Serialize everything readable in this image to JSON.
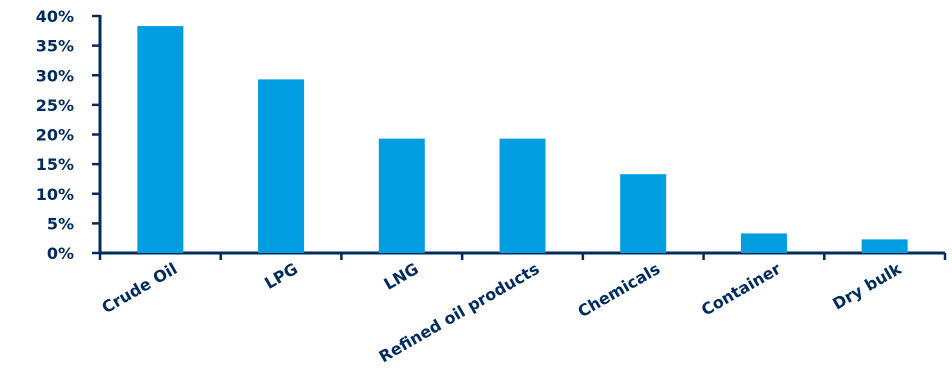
{
  "chart_data": {
    "type": "bar",
    "categories": [
      "Crude Oil",
      "LPG",
      "LNG",
      "Refined oil products",
      "Chemicals",
      "Container",
      "Dry bulk"
    ],
    "values": [
      38.3,
      29.3,
      19.3,
      19.3,
      13.3,
      3.3,
      2.3
    ],
    "ylim": [
      0,
      40
    ],
    "yticks": [
      "0%",
      "5%",
      "10%",
      "15%",
      "20%",
      "25%",
      "30%",
      "35%",
      "40%"
    ],
    "title": "",
    "xlabel": "",
    "ylabel": "",
    "grid": false,
    "colors": {
      "bar": "#009ee0",
      "axis": "#002b5c",
      "text": "#002b5c"
    }
  }
}
